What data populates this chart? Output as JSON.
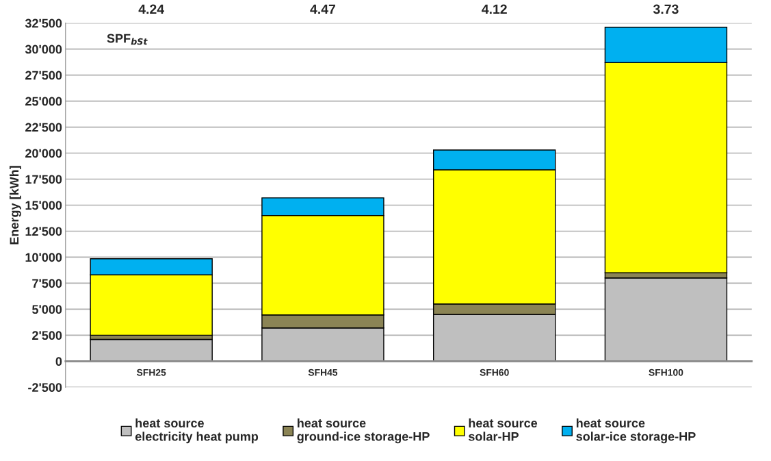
{
  "chart_data": {
    "type": "bar",
    "stacked": true,
    "ylabel": "Energy [kWh]",
    "categories": [
      "SFH25",
      "SFH45",
      "SFH60",
      "SFH100"
    ],
    "series": [
      {
        "name": "heat source\nelectricity heat pump",
        "color": "#bfbfbf",
        "values": [
          2100,
          3200,
          4500,
          8000
        ]
      },
      {
        "name": "heat source\nground-ice storage-HP",
        "color": "#8b8455",
        "values": [
          400,
          1250,
          1000,
          500
        ]
      },
      {
        "name": "heat source\nsolar-HP",
        "color": "#ffff00",
        "values": [
          5800,
          9550,
          12900,
          20200
        ]
      },
      {
        "name": "heat source\nsolar-ice storage-HP",
        "color": "#00b0f0",
        "values": [
          1550,
          1700,
          1900,
          3400
        ]
      }
    ],
    "ylim": [
      -2500,
      32500
    ],
    "yticks": [
      {
        "value": -2500,
        "label": "-2'500"
      },
      0,
      {
        "value": 2500,
        "label": "2'500"
      },
      {
        "value": 5000,
        "label": "5'000"
      },
      {
        "value": 7500,
        "label": "7'500"
      },
      {
        "value": 10000,
        "label": "10'000"
      },
      {
        "value": 12500,
        "label": "12'500"
      },
      {
        "value": 15000,
        "label": "15'000"
      },
      {
        "value": 17500,
        "label": "17'500"
      },
      {
        "value": 20000,
        "label": "20'000"
      },
      {
        "value": 22500,
        "label": "22'500"
      },
      {
        "value": 25000,
        "label": "25'000"
      },
      {
        "value": 27500,
        "label": "27'500"
      },
      {
        "value": 30000,
        "label": "30'000"
      },
      {
        "value": 32500,
        "label": "32'500"
      }
    ],
    "annotations": [
      "4.24",
      "4.47",
      "4.12",
      "3.73",
      "SPF$_{bSt}$"
    ],
    "grid": "y",
    "legend": "bottom"
  }
}
